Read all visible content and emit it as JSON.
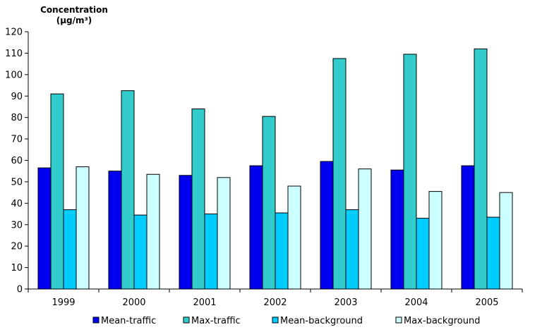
{
  "chart_data": {
    "type": "bar",
    "ylabel_line1": "Concentration",
    "ylabel_line2": "(µg/m³)",
    "xlabel": "",
    "ylim": [
      0,
      120
    ],
    "ytick_step": 10,
    "grid": false,
    "legend_position": "bottom",
    "categories": [
      "1999",
      "2000",
      "2001",
      "2002",
      "2003",
      "2004",
      "2005"
    ],
    "series": [
      {
        "name": "Mean-traffic",
        "color": "#0000ee",
        "values": [
          56.5,
          55.0,
          53.0,
          57.5,
          59.5,
          55.5,
          57.5
        ]
      },
      {
        "name": "Max-traffic",
        "color": "#33cccc",
        "values": [
          91.0,
          92.5,
          84.0,
          80.5,
          107.5,
          109.5,
          112.0
        ]
      },
      {
        "name": "Mean-background",
        "color": "#00ccff",
        "values": [
          37.0,
          34.5,
          35.0,
          35.5,
          37.0,
          33.0,
          33.5
        ]
      },
      {
        "name": "Max-background",
        "color": "#ccffff",
        "values": [
          57.0,
          53.5,
          52.0,
          48.0,
          56.0,
          45.5,
          45.0
        ]
      }
    ]
  }
}
